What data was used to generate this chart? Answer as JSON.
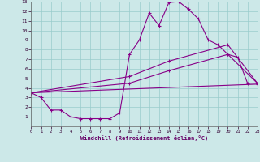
{
  "xlabel": "Windchill (Refroidissement éolien,°C)",
  "xlim": [
    0,
    23
  ],
  "ylim": [
    0,
    13
  ],
  "xticks": [
    0,
    1,
    2,
    3,
    4,
    5,
    6,
    7,
    8,
    9,
    10,
    11,
    12,
    13,
    14,
    15,
    16,
    17,
    18,
    19,
    20,
    21,
    22,
    23
  ],
  "yticks": [
    1,
    2,
    3,
    4,
    5,
    6,
    7,
    8,
    9,
    10,
    11,
    12,
    13
  ],
  "background_color": "#cce8e8",
  "line_color": "#880088",
  "grid_color": "#99cccc",
  "line1_x": [
    0,
    1,
    2,
    3,
    4,
    5,
    6,
    7,
    8,
    9,
    10,
    11,
    12,
    13,
    14,
    15,
    16,
    17,
    18,
    19,
    20,
    21,
    22,
    23
  ],
  "line1_y": [
    3.5,
    3.0,
    1.7,
    1.7,
    1.0,
    0.8,
    0.8,
    0.8,
    0.8,
    1.4,
    7.5,
    9.0,
    11.8,
    10.5,
    12.9,
    13.0,
    12.2,
    11.2,
    9.0,
    8.5,
    7.5,
    7.2,
    4.5,
    4.5
  ],
  "line2_x": [
    0,
    10,
    14,
    20,
    23
  ],
  "line2_y": [
    3.5,
    5.2,
    6.8,
    8.5,
    4.5
  ],
  "line3_x": [
    0,
    10,
    14,
    20,
    23
  ],
  "line3_y": [
    3.5,
    4.5,
    5.8,
    7.5,
    4.5
  ],
  "line4_x": [
    0,
    23
  ],
  "line4_y": [
    3.5,
    4.4
  ]
}
